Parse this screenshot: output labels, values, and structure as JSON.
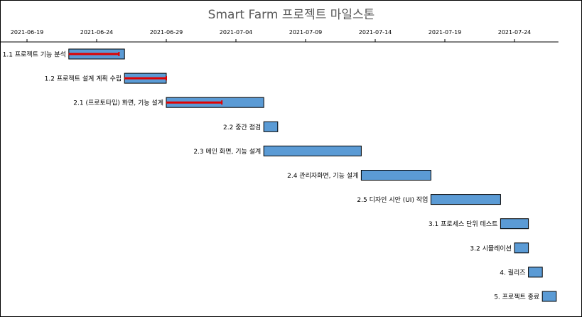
{
  "chart_data": {
    "type": "gantt",
    "title": "Smart Farm 프로젝트 마일스톤",
    "x_axis": {
      "position": "top",
      "ticks": [
        "2021-06-19",
        "2021-06-24",
        "2021-06-29",
        "2021-07-04",
        "2021-07-09",
        "2021-07-14",
        "2021-07-19",
        "2021-07-24"
      ],
      "range": [
        "2021-06-16",
        "2021-07-27"
      ]
    },
    "grid": false,
    "legend": "none",
    "colors": {
      "bar": "#5b9bd5",
      "bar_border": "#000000",
      "progress": "#e00000"
    },
    "tasks": [
      {
        "label": "1.1 프로젝트 기능 분석",
        "start": "2021-06-22",
        "end": "2021-06-26",
        "progress": 0.9
      },
      {
        "label": "1.2 프로젝트 설계 계획 수립",
        "start": "2021-06-26",
        "end": "2021-06-29",
        "progress": 1.0
      },
      {
        "label": "2.1 (프로토타입) 화면, 기능 설계",
        "start": "2021-06-29",
        "end": "2021-07-06",
        "progress": 0.57
      },
      {
        "label": "2.2 중간 점검",
        "start": "2021-07-06",
        "end": "2021-07-07",
        "progress": 0
      },
      {
        "label": "2.3 메인 화면, 기능 설계",
        "start": "2021-07-06",
        "end": "2021-07-13",
        "progress": 0
      },
      {
        "label": "2.4 관리자화면, 기능 설계",
        "start": "2021-07-13",
        "end": "2021-07-18",
        "progress": 0
      },
      {
        "label": "2.5 디자인 시안 (UI) 작업",
        "start": "2021-07-18",
        "end": "2021-07-23",
        "progress": 0
      },
      {
        "label": "3.1 프로세스 단위 테스트",
        "start": "2021-07-23",
        "end": "2021-07-25",
        "progress": 0
      },
      {
        "label": "3.2 시뮬레이션",
        "start": "2021-07-24",
        "end": "2021-07-25",
        "progress": 0
      },
      {
        "label": "4. 릴리즈",
        "start": "2021-07-25",
        "end": "2021-07-26",
        "progress": 0
      },
      {
        "label": "5. 프로젝트 종료",
        "start": "2021-07-26",
        "end": "2021-07-27",
        "progress": 0
      }
    ]
  }
}
